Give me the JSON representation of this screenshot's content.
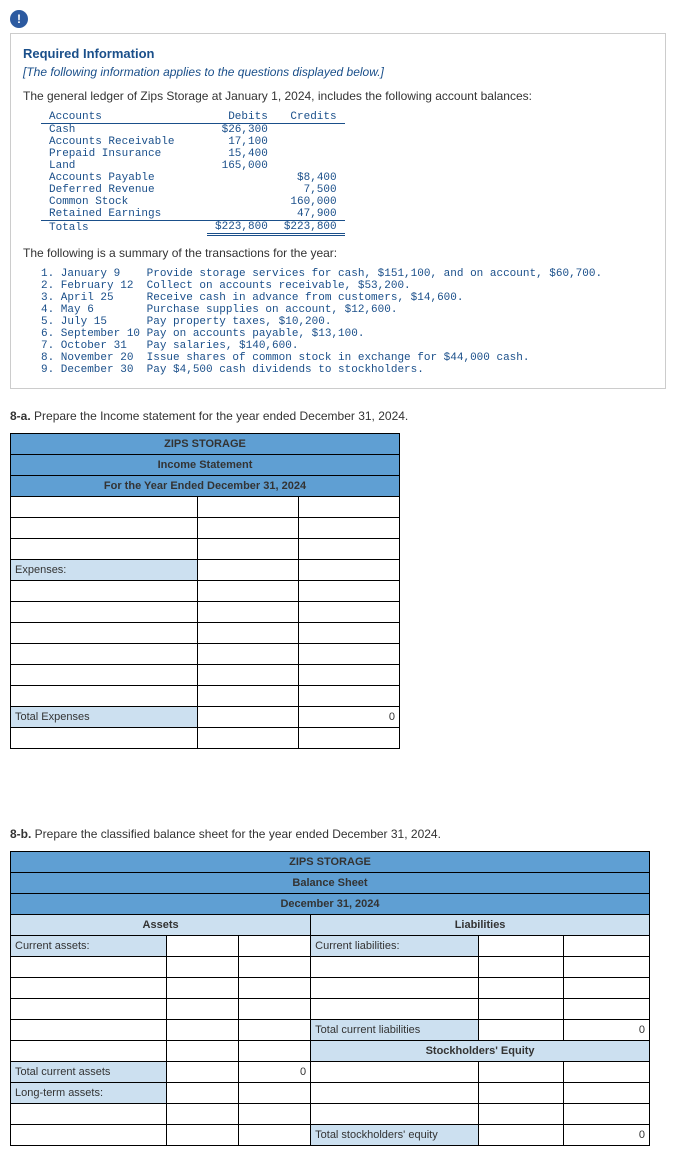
{
  "info_icon": "!",
  "req": {
    "title": "Required Information",
    "subtitle": "[The following information applies to the questions displayed below.]",
    "intro": "The general ledger of Zips Storage at January 1, 2024, includes the following account balances:"
  },
  "ledger": {
    "headers": [
      "Accounts",
      "Debits",
      "Credits"
    ],
    "rows": [
      {
        "name": "Cash",
        "debit": "$26,300",
        "credit": ""
      },
      {
        "name": "Accounts Receivable",
        "debit": "17,100",
        "credit": ""
      },
      {
        "name": "Prepaid Insurance",
        "debit": "15,400",
        "credit": ""
      },
      {
        "name": "Land",
        "debit": "165,000",
        "credit": ""
      },
      {
        "name": "Accounts Payable",
        "debit": "",
        "credit": "$8,400"
      },
      {
        "name": "Deferred Revenue",
        "debit": "",
        "credit": "7,500"
      },
      {
        "name": "Common Stock",
        "debit": "",
        "credit": "160,000"
      },
      {
        "name": "Retained Earnings",
        "debit": "",
        "credit": "47,900"
      }
    ],
    "totals": {
      "name": "   Totals",
      "debit": "$223,800",
      "credit": "$223,800"
    }
  },
  "txn_intro": "The following is a summary of the transactions for the year:",
  "txns": [
    {
      "n": "1.",
      "d": "January 9",
      "t": "Provide storage services for cash, $151,100, and on account, $60,700."
    },
    {
      "n": "2.",
      "d": "February 12",
      "t": "Collect on accounts receivable, $53,200."
    },
    {
      "n": "3.",
      "d": "April 25",
      "t": "Receive cash in advance from customers, $14,600."
    },
    {
      "n": "4.",
      "d": "May 6",
      "t": "Purchase supplies on account, $12,600."
    },
    {
      "n": "5.",
      "d": "July 15",
      "t": "Pay property taxes, $10,200."
    },
    {
      "n": "6.",
      "d": "September 10",
      "t": "Pay on accounts payable, $13,100."
    },
    {
      "n": "7.",
      "d": "October 31",
      "t": "Pay salaries, $140,600."
    },
    {
      "n": "8.",
      "d": "November 20",
      "t": "Issue shares of common stock in exchange for $44,000 cash."
    },
    {
      "n": "9.",
      "d": "December 30",
      "t": "Pay $4,500 cash dividends to stockholders."
    }
  ],
  "q8a": "8-a. Prepare the Income statement for the year ended December 31, 2024.",
  "inc": {
    "h1": "ZIPS STORAGE",
    "h2": "Income Statement",
    "h3": "For the Year Ended December 31, 2024",
    "expenses_label": "Expenses:",
    "total_exp_label": "Total Expenses",
    "zero": "0"
  },
  "q8b": "8-b. Prepare the classified balance sheet for the year ended December 31, 2024.",
  "bal": {
    "h1": "ZIPS STORAGE",
    "h2": "Balance Sheet",
    "h3": "December 31, 2024",
    "assets": "Assets",
    "liab": "Liabilities",
    "cur_assets": "Current assets:",
    "cur_liab": "Current liabilities:",
    "tot_cur_liab": "Total current liabilities",
    "se": "Stockholders' Equity",
    "tot_cur_assets": "Total current assets",
    "lt_assets": "Long-term assets:",
    "tot_se": "Total stockholders' equity",
    "zero": "0"
  }
}
